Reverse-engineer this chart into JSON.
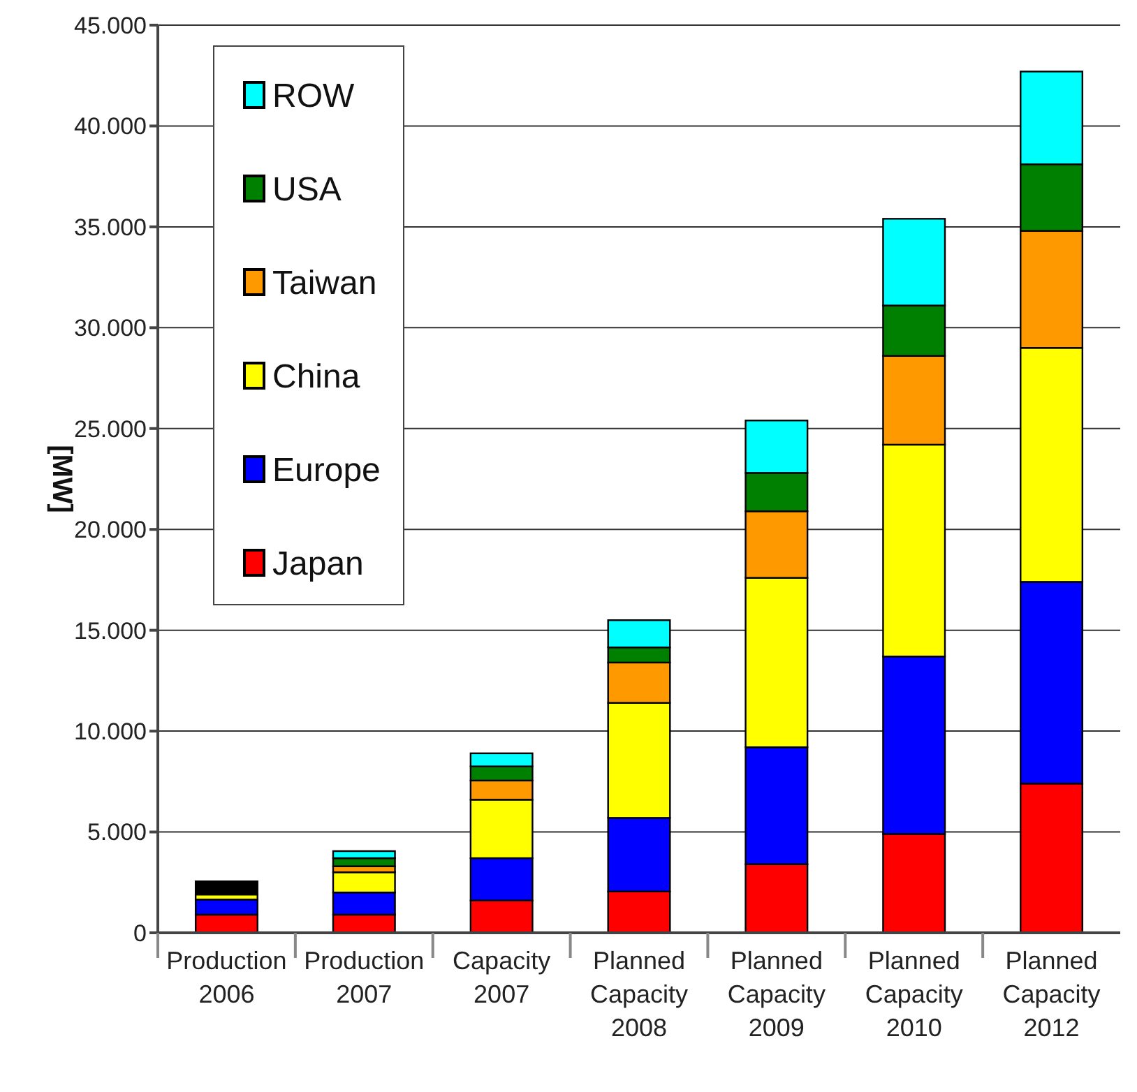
{
  "chart_data": {
    "type": "bar",
    "ylabel": "[MW]",
    "stacked": true,
    "grid": "y",
    "legend": "top left",
    "categories": [
      "Production 2006",
      "Production 2007",
      "Capacity 2007",
      "Planned Capacity 2008",
      "Planned Capacity 2009",
      "Planned Capacity 2010",
      "Planned Capacity 2012"
    ],
    "ylim": [
      0,
      45000
    ],
    "yticks": [
      {
        "value": 0,
        "label": "0"
      },
      {
        "value": 5000,
        "label": "5.000"
      },
      {
        "value": 10000,
        "label": "10.000"
      },
      {
        "value": 15000,
        "label": "15.000"
      },
      {
        "value": 20000,
        "label": "20.000"
      },
      {
        "value": 25000,
        "label": "25.000"
      },
      {
        "value": 30000,
        "label": "30.000"
      },
      {
        "value": 35000,
        "label": "35.000"
      },
      {
        "value": 40000,
        "label": "40.000"
      },
      {
        "value": 45000,
        "label": "45.000"
      }
    ],
    "series": [
      {
        "name": "Japan",
        "color": "#ff0000",
        "values": [
          900,
          900,
          1600,
          2050,
          3400,
          4900,
          7400
        ]
      },
      {
        "name": "Europe",
        "color": "#0000ff",
        "values": [
          750,
          1100,
          2100,
          3650,
          5800,
          8800,
          10000
        ]
      },
      {
        "name": "China",
        "color": "#ffff00",
        "values": [
          250,
          1000,
          2900,
          5700,
          8400,
          10500,
          11600
        ]
      },
      {
        "name": "Taiwan",
        "color": "#ff9900",
        "values": [
          0,
          300,
          950,
          2000,
          3300,
          4400,
          5800
        ]
      },
      {
        "name": "USA",
        "color": "#008000",
        "values": [
          0,
          400,
          700,
          750,
          1900,
          2500,
          3300
        ]
      },
      {
        "name": "ROW",
        "color": "#00ffff",
        "colors": [
          "#000000",
          "#00ffff",
          "#00ffff",
          "#00ffff",
          "#00ffff",
          "#00ffff",
          "#00ffff"
        ],
        "values": [
          650,
          350,
          650,
          1350,
          2600,
          4300,
          4600
        ]
      }
    ]
  }
}
